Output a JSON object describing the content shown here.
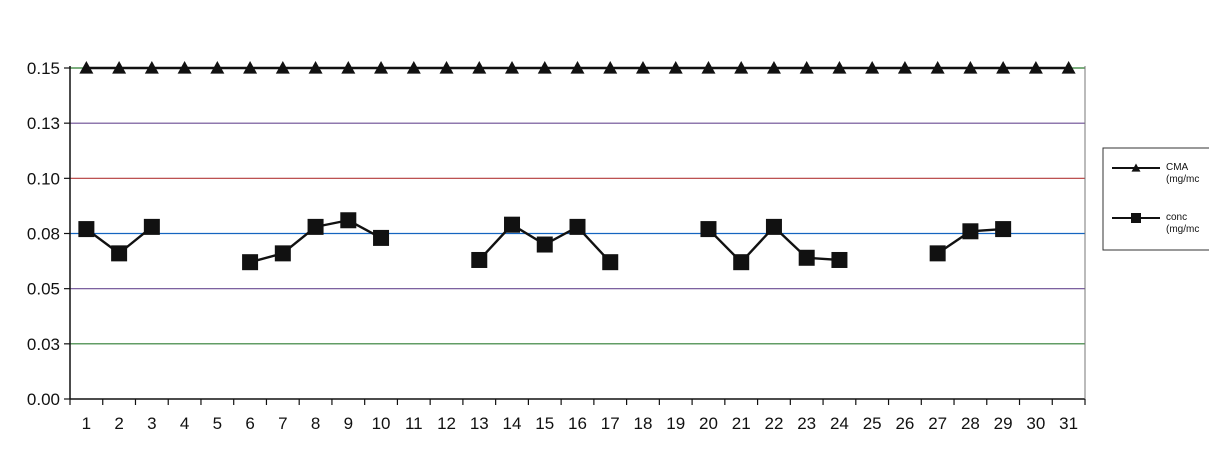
{
  "chart_data": {
    "type": "line",
    "categories": [
      "1",
      "2",
      "3",
      "4",
      "5",
      "6",
      "7",
      "8",
      "9",
      "10",
      "11",
      "12",
      "13",
      "14",
      "15",
      "16",
      "17",
      "18",
      "19",
      "20",
      "21",
      "22",
      "23",
      "24",
      "25",
      "26",
      "27",
      "28",
      "29",
      "30",
      "31"
    ],
    "ylim": [
      0,
      0.15
    ],
    "yticks": [
      "0.00",
      "0.03",
      "0.05",
      "0.08",
      "0.10",
      "0.13",
      "0.15"
    ],
    "ytick_values": [
      0,
      0.025,
      0.05,
      0.075,
      0.1,
      0.125,
      0.15
    ],
    "grid": true,
    "legend_position": "right",
    "series": [
      {
        "name": "CMA (mg/mc",
        "marker": "triangle",
        "color": "#111111",
        "values": [
          0.15,
          0.15,
          0.15,
          0.15,
          0.15,
          0.15,
          0.15,
          0.15,
          0.15,
          0.15,
          0.15,
          0.15,
          0.15,
          0.15,
          0.15,
          0.15,
          0.15,
          0.15,
          0.15,
          0.15,
          0.15,
          0.15,
          0.15,
          0.15,
          0.15,
          0.15,
          0.15,
          0.15,
          0.15,
          0.15,
          0.15
        ]
      },
      {
        "name": "conc (mg/mc",
        "marker": "square",
        "color": "#111111",
        "values": [
          0.077,
          0.066,
          0.078,
          null,
          null,
          0.062,
          0.066,
          0.078,
          0.081,
          0.073,
          null,
          null,
          0.063,
          0.079,
          0.07,
          0.078,
          0.062,
          null,
          null,
          0.077,
          0.062,
          0.078,
          0.064,
          0.063,
          null,
          null,
          0.066,
          0.076,
          0.077,
          null,
          null
        ]
      }
    ]
  },
  "colors": {
    "grid_lines": [
      "#2e7d32",
      "#6a4c93",
      "#1565c0",
      "#b23a3a",
      "#6a4c93",
      "#2e7d32"
    ],
    "axis": "#111111"
  }
}
